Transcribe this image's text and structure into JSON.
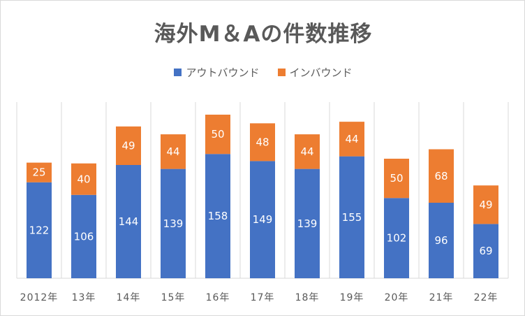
{
  "chart_data": {
    "type": "bar",
    "stacked": true,
    "title": "海外M＆Aの件数推移",
    "categories": [
      "2012年",
      "13年",
      "14年",
      "15年",
      "16年",
      "17年",
      "18年",
      "19年",
      "20年",
      "21年",
      "22年"
    ],
    "series": [
      {
        "name": "アウトバウンド",
        "color": "#4472c4",
        "values": [
          122,
          106,
          144,
          139,
          158,
          149,
          139,
          155,
          102,
          96,
          69
        ]
      },
      {
        "name": "インバウンド",
        "color": "#ed7d31",
        "values": [
          25,
          40,
          49,
          44,
          50,
          48,
          44,
          44,
          50,
          68,
          49
        ]
      }
    ],
    "xlabel": "",
    "ylabel": "",
    "ylim": [
      0,
      224
    ],
    "legend_position": "top",
    "grid": false,
    "vertical_gridlines": true
  }
}
